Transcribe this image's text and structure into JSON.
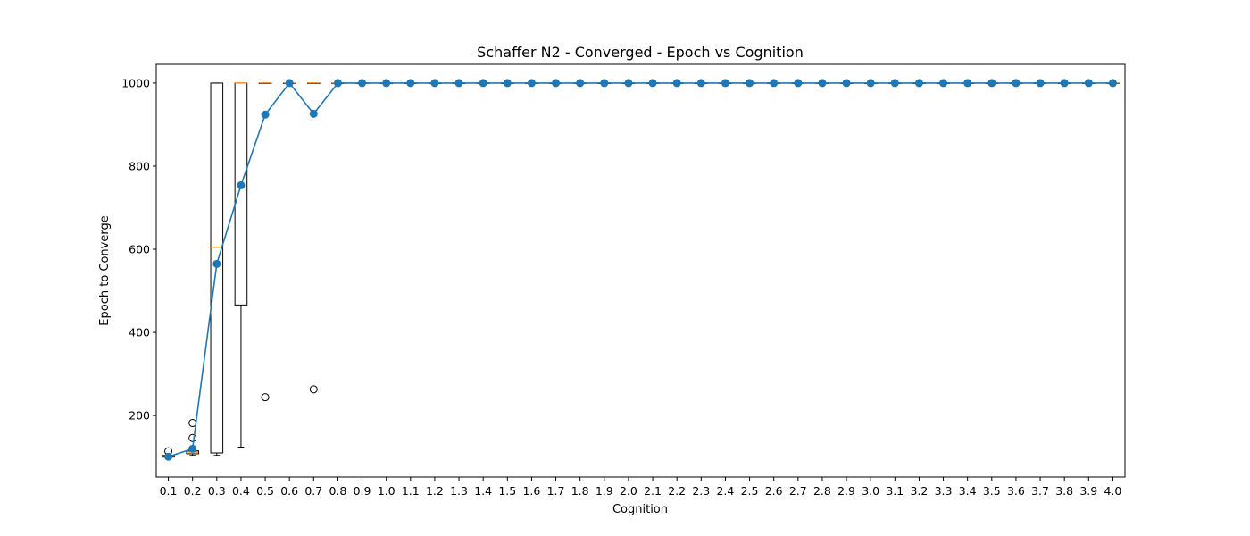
{
  "chart_data": {
    "type": "box",
    "title": "Schaffer N2 - Converged - Epoch vs Cognition",
    "xlabel": "Cognition",
    "ylabel": "Epoch to Converge",
    "categories": [
      "0.1",
      "0.2",
      "0.3",
      "0.4",
      "0.5",
      "0.6",
      "0.7",
      "0.8",
      "0.9",
      "1.0",
      "1.1",
      "1.2",
      "1.3",
      "1.4",
      "1.5",
      "1.6",
      "1.7",
      "1.8",
      "1.9",
      "2.0",
      "2.1",
      "2.2",
      "2.3",
      "2.4",
      "2.5",
      "2.6",
      "2.7",
      "2.8",
      "2.9",
      "3.0",
      "3.1",
      "3.2",
      "3.3",
      "3.4",
      "3.5",
      "3.6",
      "3.7",
      "3.8",
      "3.9",
      "4.0"
    ],
    "y_ticks": [
      200,
      400,
      600,
      800,
      1000
    ],
    "ylim": [
      52,
      1045
    ],
    "boxes": [
      {
        "q1": 100,
        "median": 102,
        "q3": 104,
        "whisker_low": 96,
        "whisker_high": 107,
        "outliers": [
          114
        ]
      },
      {
        "q1": 108,
        "median": 112,
        "q3": 115,
        "whisker_low": 104,
        "whisker_high": 118,
        "outliers": [
          146,
          182
        ]
      },
      {
        "q1": 110,
        "median": 605,
        "q3": 1000,
        "whisker_low": 104,
        "whisker_high": 1000,
        "outliers": []
      },
      {
        "q1": 466,
        "median": 1000,
        "q3": 1000,
        "whisker_low": 124,
        "whisker_high": 1000,
        "outliers": []
      },
      {
        "q1": 1000,
        "median": 1000,
        "q3": 1000,
        "whisker_low": 1000,
        "whisker_high": 1000,
        "outliers": [
          244
        ]
      },
      {
        "q1": 1000,
        "median": 1000,
        "q3": 1000,
        "whisker_low": 1000,
        "whisker_high": 1000,
        "outliers": []
      },
      {
        "q1": 1000,
        "median": 1000,
        "q3": 1000,
        "whisker_low": 1000,
        "whisker_high": 1000,
        "outliers": [
          263
        ]
      }
    ],
    "constant_from_index": 7,
    "constant_value": 1000,
    "mean_line": {
      "values": [
        101,
        120,
        565,
        754,
        924,
        1000,
        926,
        1000,
        1000,
        1000,
        1000,
        1000,
        1000,
        1000,
        1000,
        1000,
        1000,
        1000,
        1000,
        1000,
        1000,
        1000,
        1000,
        1000,
        1000,
        1000,
        1000,
        1000,
        1000,
        1000,
        1000,
        1000,
        1000,
        1000,
        1000,
        1000,
        1000,
        1000,
        1000,
        1000
      ]
    },
    "colors": {
      "mean": "#1f77b4",
      "median": "#ff7f0e",
      "box": "#000000"
    },
    "grid": false
  }
}
